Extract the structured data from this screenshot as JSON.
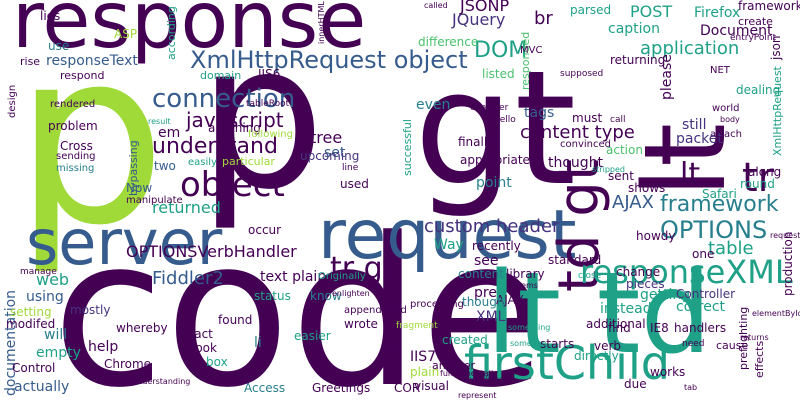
{
  "colors": {
    "dark_purple": "#440154",
    "indigo": "#46327e",
    "slate_blue": "#365c8d",
    "teal_blue": "#277f8e",
    "teal": "#1fa187",
    "green": "#4ac16d",
    "lime": "#a0da39"
  },
  "words": [
    {
      "text": "response",
      "color": "dark_purple"
    },
    {
      "text": "p",
      "color": "lime"
    },
    {
      "text": "p",
      "color": "dark_purple"
    },
    {
      "text": "gt",
      "color": "dark_purple"
    },
    {
      "text": "lt",
      "color": "dark_purple"
    },
    {
      "text": "code",
      "color": "dark_purple"
    },
    {
      "text": "lt td",
      "color": "teal"
    },
    {
      "text": "server",
      "color": "slate_blue"
    },
    {
      "text": "request",
      "color": "slate_blue"
    },
    {
      "text": "td gt",
      "color": "dark_purple"
    },
    {
      "text": "tr",
      "color": "dark_purple"
    },
    {
      "text": "firstChild",
      "color": "teal"
    },
    {
      "text": "responseXML",
      "color": "teal"
    },
    {
      "text": "object",
      "color": "dark_purple"
    },
    {
      "text": "XmlHttpRequest object",
      "color": "slate_blue"
    },
    {
      "text": "connection",
      "color": "slate_blue"
    },
    {
      "text": "OPTIONS",
      "color": "teal_blue"
    },
    {
      "text": "tr gt",
      "color": "dark_purple"
    },
    {
      "text": "framework",
      "color": "teal_blue"
    },
    {
      "text": "understand",
      "color": "dark_purple"
    },
    {
      "text": "lt",
      "color": "dark_purple"
    },
    {
      "text": "javascript",
      "color": "dark_purple"
    },
    {
      "text": "application",
      "color": "teal"
    },
    {
      "text": "DOM",
      "color": "teal"
    },
    {
      "text": "content type",
      "color": "dark_purple"
    },
    {
      "text": "custom header",
      "color": "indigo"
    },
    {
      "text": "AJAX",
      "color": "slate_blue"
    },
    {
      "text": "table",
      "color": "teal"
    },
    {
      "text": "returned",
      "color": "teal"
    },
    {
      "text": "Fiddler2",
      "color": "slate_blue"
    },
    {
      "text": "OPTIONSVerbHandler",
      "color": "dark_purple"
    },
    {
      "text": "JQuery",
      "color": "indigo"
    },
    {
      "text": "JSONP",
      "color": "dark_purple"
    },
    {
      "text": "POST",
      "color": "teal"
    },
    {
      "text": "caption",
      "color": "teal"
    },
    {
      "text": "Firefox",
      "color": "teal"
    },
    {
      "text": "Document",
      "color": "dark_purple"
    },
    {
      "text": "br",
      "color": "dark_purple"
    },
    {
      "text": "parsed",
      "color": "teal"
    },
    {
      "text": "responseText",
      "color": "slate_blue"
    },
    {
      "text": "em",
      "color": "dark_purple"
    },
    {
      "text": "tree",
      "color": "dark_purple"
    },
    {
      "text": "set",
      "color": "slate_blue"
    },
    {
      "text": "tags",
      "color": "slate_blue"
    },
    {
      "text": "must",
      "color": "dark_purple"
    },
    {
      "text": "still",
      "color": "indigo"
    },
    {
      "text": "packet",
      "color": "indigo"
    },
    {
      "text": "thought",
      "color": "dark_purple"
    },
    {
      "text": "point",
      "color": "teal_blue"
    },
    {
      "text": "howdy",
      "color": "dark_purple"
    },
    {
      "text": "one",
      "color": "dark_purple"
    },
    {
      "text": "see",
      "color": "dark_purple"
    },
    {
      "text": "text plain",
      "color": "dark_purple"
    },
    {
      "text": "instead",
      "color": "teal"
    },
    {
      "text": "getting",
      "color": "teal"
    },
    {
      "text": "correct",
      "color": "teal"
    },
    {
      "text": "XML",
      "color": "indigo"
    },
    {
      "text": "pre",
      "color": "dark_purple"
    },
    {
      "text": "content",
      "color": "teal_blue"
    },
    {
      "text": "documentation",
      "color": "slate_blue"
    },
    {
      "text": "web",
      "color": "teal"
    },
    {
      "text": "will",
      "color": "teal_blue"
    },
    {
      "text": "empty",
      "color": "teal"
    },
    {
      "text": "help",
      "color": "dark_purple"
    },
    {
      "text": "IIS7",
      "color": "dark_purple"
    },
    {
      "text": "works",
      "color": "dark_purple"
    },
    {
      "text": "created",
      "color": "teal"
    },
    {
      "text": "plain",
      "color": "lime"
    },
    {
      "text": "problem",
      "color": "dark_purple"
    },
    {
      "text": "Cross",
      "color": "dark_purple"
    },
    {
      "text": "Now",
      "color": "slate_blue"
    },
    {
      "text": "two",
      "color": "slate_blue"
    },
    {
      "text": "occur",
      "color": "dark_purple"
    },
    {
      "text": "anything",
      "color": "dark_purple"
    },
    {
      "text": "upcoming",
      "color": "indigo"
    },
    {
      "text": "used",
      "color": "dark_purple"
    },
    {
      "text": "finally",
      "color": "dark_purple"
    },
    {
      "text": "appropriate",
      "color": "dark_purple"
    },
    {
      "text": "action",
      "color": "green"
    },
    {
      "text": "sent",
      "color": "dark_purple"
    },
    {
      "text": "shows",
      "color": "dark_purple"
    },
    {
      "text": "Safari",
      "color": "teal"
    },
    {
      "text": "along",
      "color": "dark_purple"
    },
    {
      "text": "round",
      "color": "teal"
    },
    {
      "text": "even",
      "color": "teal_blue"
    },
    {
      "text": "mostly",
      "color": "indigo"
    },
    {
      "text": "using",
      "color": "slate_blue"
    },
    {
      "text": "know",
      "color": "teal_blue"
    },
    {
      "text": "Way",
      "color": "teal"
    },
    {
      "text": "recently",
      "color": "dark_purple"
    },
    {
      "text": "library",
      "color": "dark_purple"
    },
    {
      "text": "standard",
      "color": "dark_purple"
    },
    {
      "text": "change",
      "color": "dark_purple"
    },
    {
      "text": "pieces",
      "color": "indigo"
    },
    {
      "text": "Controller",
      "color": "indigo"
    },
    {
      "text": "handlers",
      "color": "dark_purple"
    },
    {
      "text": "IE8",
      "color": "dark_purple"
    },
    {
      "text": "additional",
      "color": "dark_purple"
    },
    {
      "text": "AJAX",
      "color": "dark_purple"
    },
    {
      "text": "though",
      "color": "teal_blue"
    },
    {
      "text": "processing",
      "color": "dark_purple"
    },
    {
      "text": "wrote",
      "color": "dark_purple"
    },
    {
      "text": "status",
      "color": "teal"
    },
    {
      "text": "found",
      "color": "dark_purple"
    },
    {
      "text": "fact",
      "color": "dark_purple"
    },
    {
      "text": "look",
      "color": "dark_purple"
    },
    {
      "text": "box",
      "color": "teal"
    },
    {
      "text": "li",
      "color": "teal_blue"
    },
    {
      "text": "easier",
      "color": "teal"
    },
    {
      "text": "via",
      "color": "dark_purple"
    },
    {
      "text": "visual",
      "color": "dark_purple"
    },
    {
      "text": "starts",
      "color": "dark_purple"
    },
    {
      "text": "directly",
      "color": "teal"
    },
    {
      "text": "find",
      "color": "dark_purple"
    },
    {
      "text": "verb",
      "color": "dark_purple"
    },
    {
      "text": "due",
      "color": "dark_purple"
    },
    {
      "text": "Chrome",
      "color": "dark_purple"
    },
    {
      "text": "Access",
      "color": "teal_blue"
    },
    {
      "text": "Greetings",
      "color": "dark_purple"
    },
    {
      "text": "COR",
      "color": "dark_purple"
    },
    {
      "text": "another",
      "color": "dark_purple"
    },
    {
      "text": "actually",
      "color": "slate_blue"
    },
    {
      "text": "Control",
      "color": "dark_purple"
    },
    {
      "text": "modifed",
      "color": "dark_purple"
    },
    {
      "text": "setting",
      "color": "lime"
    },
    {
      "text": "whereby",
      "color": "dark_purple"
    },
    {
      "text": "IIS6",
      "color": "dark_purple"
    },
    {
      "text": "ASP",
      "color": "lime"
    },
    {
      "text": "use",
      "color": "teal_blue"
    },
    {
      "text": "lies",
      "color": "dark_purple"
    },
    {
      "text": "rise",
      "color": "dark_purple"
    },
    {
      "text": "respond",
      "color": "dark_purple"
    },
    {
      "text": "domain",
      "color": "teal"
    },
    {
      "text": "according",
      "color": "teal"
    },
    {
      "text": "difference",
      "color": "green"
    },
    {
      "text": "listed",
      "color": "green"
    },
    {
      "text": "responded",
      "color": "green"
    },
    {
      "text": "returning",
      "color": "dark_purple"
    },
    {
      "text": "please",
      "color": "dark_purple"
    },
    {
      "text": "framework",
      "color": "dark_purple"
    },
    {
      "text": "create",
      "color": "dark_purple"
    },
    {
      "text": "json",
      "color": "dark_purple"
    },
    {
      "text": "dealing",
      "color": "teal"
    },
    {
      "text": "world",
      "color": "dark_purple"
    },
    {
      "text": "XmlHttpRequest",
      "color": "teal"
    },
    {
      "text": "production",
      "color": "dark_purple"
    },
    {
      "text": "attach",
      "color": "dark_purple"
    },
    {
      "text": "cause",
      "color": "dark_purple"
    },
    {
      "text": "preflighting",
      "color": "dark_purple"
    },
    {
      "text": "effects",
      "color": "dark_purple"
    },
    {
      "text": "need",
      "color": "dark_purple"
    },
    {
      "text": "successful",
      "color": "teal"
    },
    {
      "text": "following",
      "color": "lime"
    },
    {
      "text": "bypassing",
      "color": "slate_blue"
    },
    {
      "text": "particular",
      "color": "lime"
    },
    {
      "text": "easily",
      "color": "teal"
    },
    {
      "text": "sending",
      "color": "dark_purple"
    },
    {
      "text": "missing",
      "color": "teal_blue"
    },
    {
      "text": "rendered",
      "color": "dark_purple"
    },
    {
      "text": "design",
      "color": "dark_purple"
    },
    {
      "text": "manage",
      "color": "dark_purple"
    },
    {
      "text": "manipulate",
      "color": "dark_purple"
    },
    {
      "text": "Originally",
      "color": "teal"
    },
    {
      "text": "appendChild",
      "color": "dark_purple"
    },
    {
      "text": "fragment",
      "color": "lime"
    },
    {
      "text": "close",
      "color": "teal"
    },
    {
      "text": "hello",
      "color": "dark_purple"
    },
    {
      "text": "call",
      "color": "dark_purple"
    },
    {
      "text": "tableRoot",
      "color": "dark_purple"
    },
    {
      "text": "MVC",
      "color": "dark_purple"
    },
    {
      "text": "line",
      "color": "dark_purple"
    },
    {
      "text": "convinced",
      "color": "dark_purple"
    },
    {
      "text": "consider",
      "color": "dark_purple"
    },
    {
      "text": "supposed",
      "color": "dark_purple"
    },
    {
      "text": "entryPoint",
      "color": "dark_purple"
    },
    {
      "text": "NET",
      "color": "dark_purple"
    },
    {
      "text": "body",
      "color": "dark_purple"
    },
    {
      "text": "result",
      "color": "teal"
    },
    {
      "text": "stripped",
      "color": "teal"
    },
    {
      "text": "something",
      "color": "teal"
    },
    {
      "text": "fundamentally",
      "color": "dark_purple"
    },
    {
      "text": "represent",
      "color": "dark_purple"
    },
    {
      "text": "nodeValues",
      "color": "dark_purple"
    },
    {
      "text": "returns",
      "color": "dark_purple"
    },
    {
      "text": "tab",
      "color": "dark_purple"
    },
    {
      "text": "elementById",
      "color": "dark_purple"
    },
    {
      "text": "misunderstanding",
      "color": "dark_purple"
    },
    {
      "text": "someone",
      "color": "teal"
    },
    {
      "text": "called",
      "color": "dark_purple"
    },
    {
      "text": "enlighten",
      "color": "dark_purple"
    },
    {
      "text": "seems",
      "color": "dark_purple"
    },
    {
      "text": "requested",
      "color": "dark_purple"
    },
    {
      "text": "innerHTML",
      "color": "dark_purple"
    }
  ]
}
